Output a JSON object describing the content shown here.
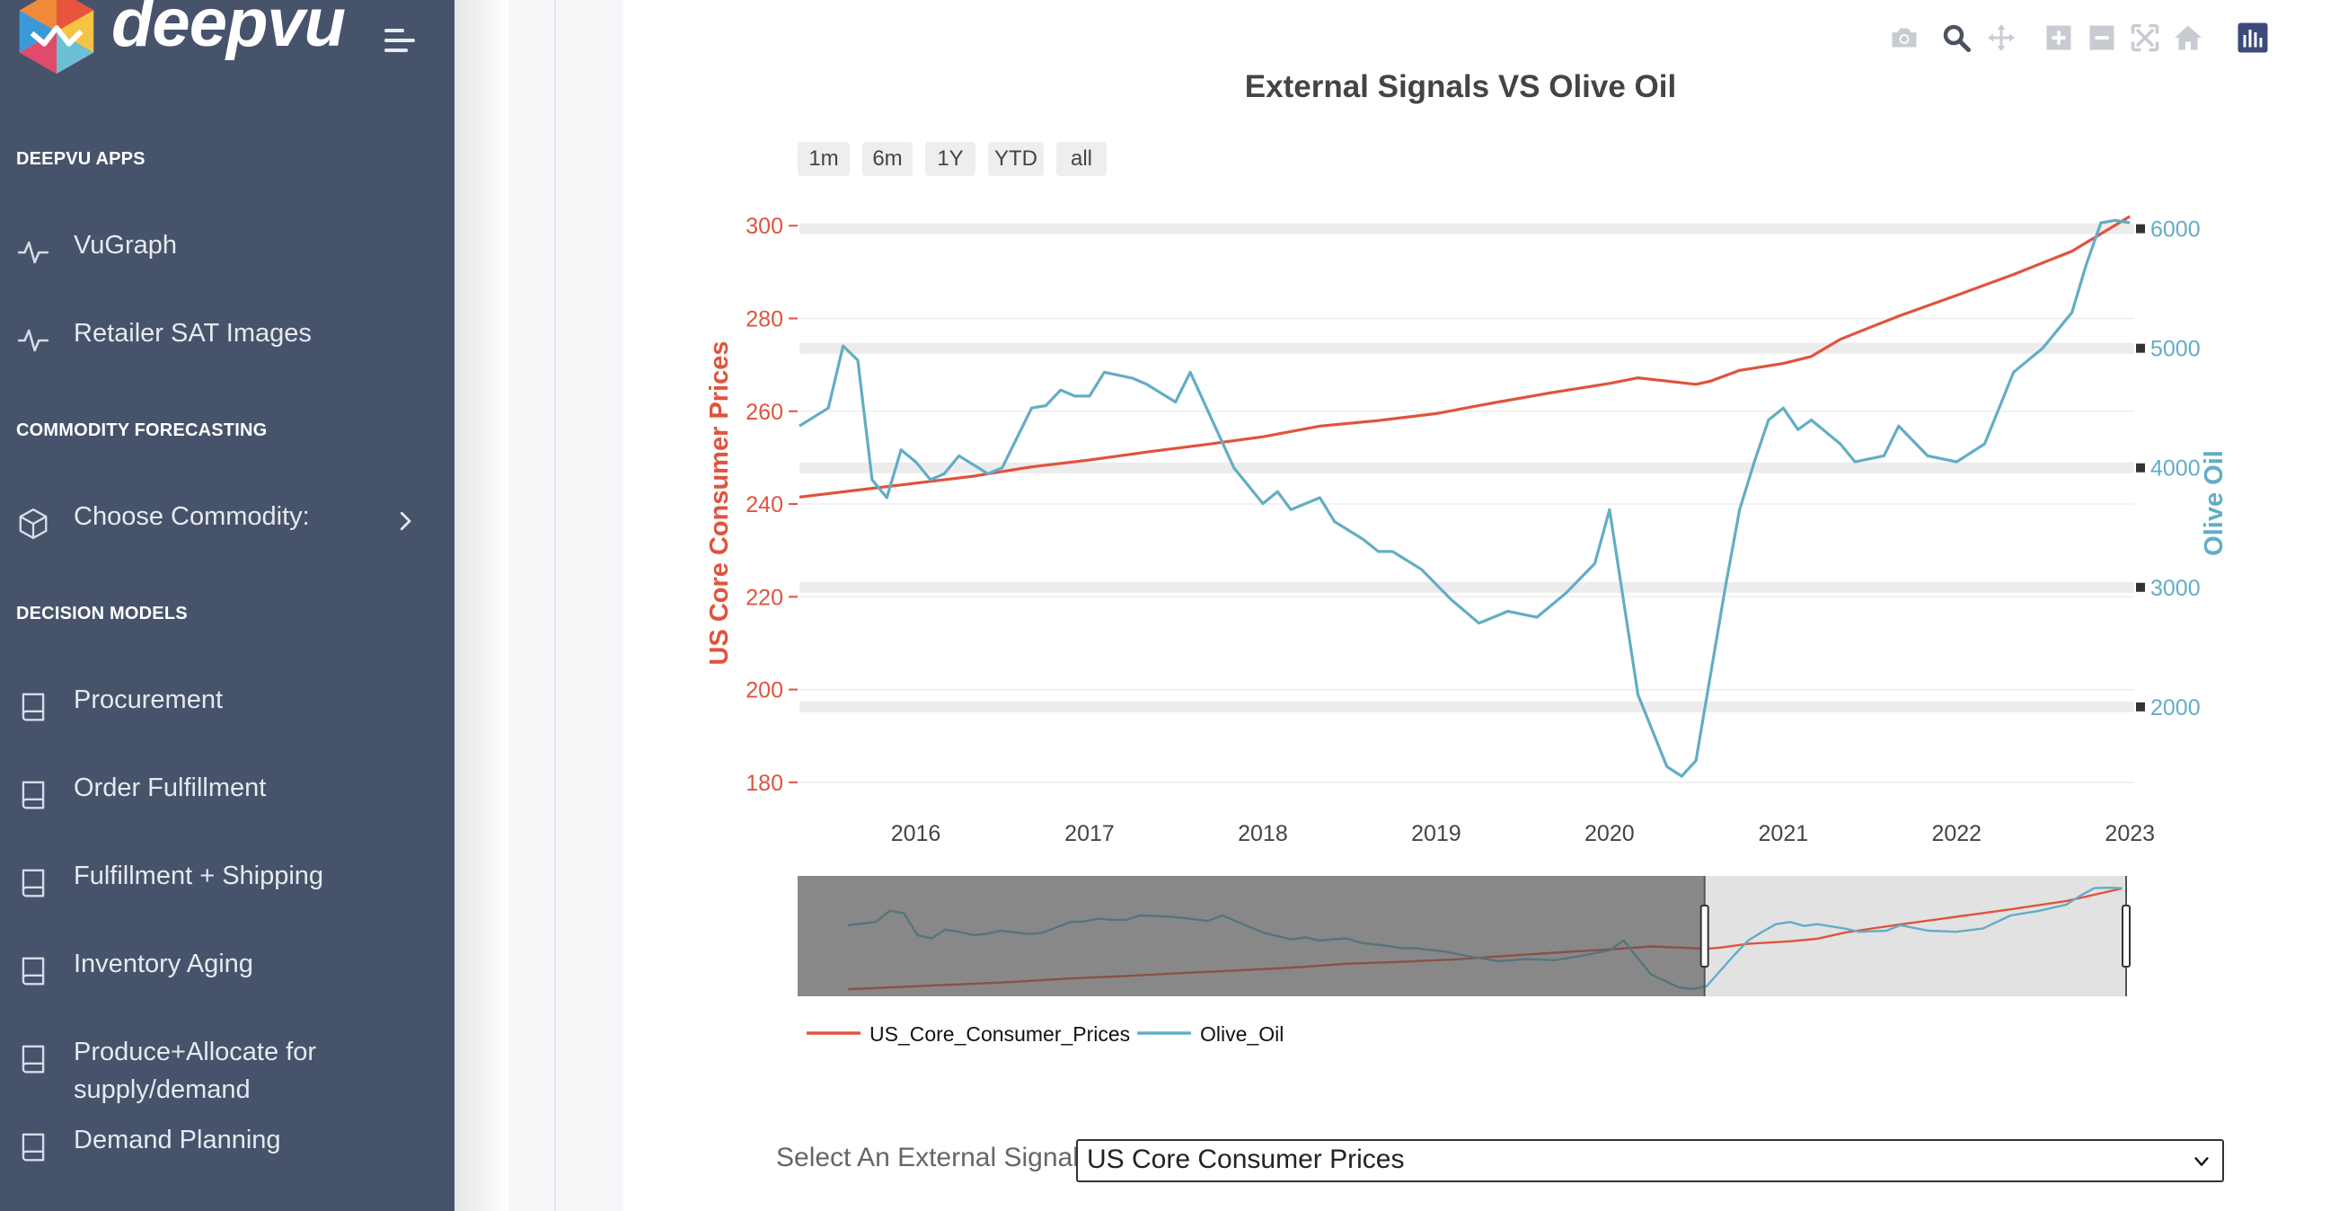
{
  "app": {
    "brand": "deepvu"
  },
  "sidebar": {
    "sections": [
      {
        "heading": "DEEPVU APPS"
      },
      {
        "heading": "COMMODITY FORECASTING"
      },
      {
        "heading": "DECISION MODELS"
      }
    ],
    "items": [
      {
        "label": "VuGraph",
        "icon": "activity-icon"
      },
      {
        "label": "Retailer SAT Images",
        "icon": "activity-icon"
      },
      {
        "label": "Choose Commodity:",
        "icon": "cube-icon"
      },
      {
        "label": "Procurement",
        "icon": "book-icon"
      },
      {
        "label": "Order Fulfillment",
        "icon": "book-icon"
      },
      {
        "label": "Fulfillment + Shipping",
        "icon": "book-icon"
      },
      {
        "label": "Inventory Aging",
        "icon": "book-icon"
      },
      {
        "label": "Produce+Allocate for supply/demand",
        "icon": "book-icon"
      },
      {
        "label": "Demand Planning",
        "icon": "book-icon"
      }
    ]
  },
  "toolbar": [
    "camera-icon",
    "zoom-icon",
    "pan-icon",
    "zoom-in-icon",
    "zoom-out-icon",
    "autoscale-icon",
    "reset-axes-icon",
    "plotly-logo-icon"
  ],
  "range_selector": [
    "1m",
    "6m",
    "1Y",
    "YTD",
    "all"
  ],
  "external_signal": {
    "label": "Select An External Signal:",
    "value": "US Core Consumer Prices"
  },
  "colors": {
    "sidebar": "#47536b",
    "series1": "#e0533d",
    "series2": "#62adc6"
  },
  "chart_data": {
    "type": "line",
    "title": "External Signals VS Olive Oil",
    "x_ticks": [
      "2016",
      "2017",
      "2018",
      "2019",
      "2020",
      "2021",
      "2022",
      "2023"
    ],
    "xlim": [
      "2015-05-01",
      "2023-01-10"
    ],
    "y_left": {
      "label": "US Core Consumer Prices",
      "ticks": [
        180,
        200,
        220,
        240,
        260,
        280,
        300
      ],
      "range": [
        179,
        304.5
      ]
    },
    "y_right": {
      "label": "Olive Oil",
      "ticks": [
        2000,
        3000,
        4000,
        5000,
        6000
      ],
      "range": [
        1330,
        6200
      ]
    },
    "legend": {
      "placement": "bottom-left"
    },
    "rangeslider": {
      "visible": true,
      "selected_from": "2020-08-01",
      "selected_to": "2023-01-10"
    },
    "series": [
      {
        "name": "US_Core_Consumer_Prices",
        "axis": "left",
        "x": [
          "2015-05-01",
          "2015-09-01",
          "2016-01-01",
          "2016-05-01",
          "2016-09-01",
          "2017-01-01",
          "2017-05-01",
          "2017-09-01",
          "2018-01-01",
          "2018-05-01",
          "2018-09-01",
          "2019-01-01",
          "2019-05-01",
          "2019-09-01",
          "2020-01-01",
          "2020-03-01",
          "2020-05-01",
          "2020-07-01",
          "2020-08-01",
          "2020-10-01",
          "2021-01-01",
          "2021-03-01",
          "2021-05-01",
          "2021-07-01",
          "2021-09-01",
          "2022-01-01",
          "2022-05-01",
          "2022-09-01",
          "2023-01-01"
        ],
        "y": [
          241.5,
          243.0,
          244.5,
          246.0,
          248.0,
          249.5,
          251.2,
          252.8,
          254.5,
          256.8,
          258.0,
          259.5,
          261.8,
          264.0,
          266.0,
          267.2,
          266.5,
          265.8,
          266.5,
          268.8,
          270.3,
          271.8,
          275.5,
          278.0,
          280.5,
          285.0,
          289.5,
          294.5,
          302.0
        ]
      },
      {
        "name": "Olive_Oil",
        "axis": "right",
        "x": [
          "2015-05-01",
          "2015-07-01",
          "2015-08-01",
          "2015-09-01",
          "2015-10-01",
          "2015-11-01",
          "2015-12-01",
          "2016-01-01",
          "2016-02-01",
          "2016-03-01",
          "2016-04-01",
          "2016-06-01",
          "2016-07-01",
          "2016-08-01",
          "2016-09-01",
          "2016-10-01",
          "2016-11-01",
          "2016-12-01",
          "2017-01-01",
          "2017-02-01",
          "2017-04-01",
          "2017-05-01",
          "2017-07-01",
          "2017-08-01",
          "2017-11-01",
          "2018-01-01",
          "2018-02-01",
          "2018-03-01",
          "2018-05-01",
          "2018-06-01",
          "2018-08-01",
          "2018-09-01",
          "2018-10-01",
          "2018-12-01",
          "2019-02-01",
          "2019-04-01",
          "2019-06-01",
          "2019-08-01",
          "2019-10-01",
          "2019-12-01",
          "2020-01-01",
          "2020-03-01",
          "2020-05-01",
          "2020-06-01",
          "2020-07-01",
          "2020-09-01",
          "2020-10-01",
          "2020-11-01",
          "2020-12-01",
          "2021-01-01",
          "2021-02-01",
          "2021-03-01",
          "2021-05-01",
          "2021-06-01",
          "2021-08-01",
          "2021-09-01",
          "2021-11-01",
          "2022-01-01",
          "2022-03-01",
          "2022-05-01",
          "2022-07-01",
          "2022-09-01",
          "2022-10-01",
          "2022-11-01",
          "2022-12-01",
          "2023-01-01"
        ],
        "y": [
          4350,
          4500,
          5020,
          4900,
          3900,
          3750,
          4150,
          4050,
          3900,
          3950,
          4100,
          3950,
          4000,
          4250,
          4500,
          4520,
          4650,
          4600,
          4600,
          4800,
          4750,
          4700,
          4550,
          4800,
          4000,
          3700,
          3800,
          3650,
          3750,
          3550,
          3400,
          3300,
          3300,
          3150,
          2900,
          2700,
          2800,
          2750,
          2950,
          3200,
          3650,
          2100,
          1500,
          1420,
          1550,
          3000,
          3650,
          4050,
          4400,
          4500,
          4320,
          4400,
          4200,
          4050,
          4100,
          4350,
          4100,
          4050,
          4200,
          4800,
          5000,
          5300,
          5700,
          6050,
          6070,
          6050
        ]
      }
    ]
  }
}
